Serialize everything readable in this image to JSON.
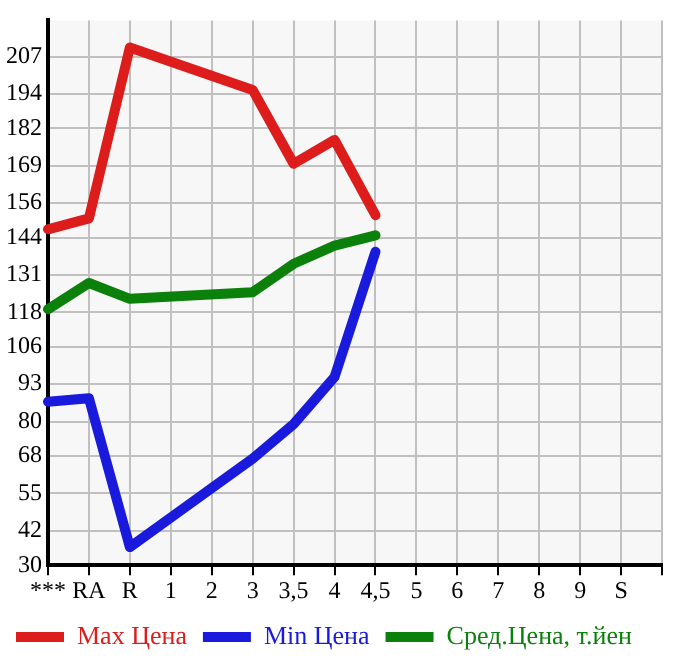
{
  "chart_data": {
    "type": "line",
    "categories": [
      "***",
      "RA",
      "R",
      "1",
      "2",
      "3",
      "3,5",
      "4",
      "4,5",
      "5",
      "6",
      "7",
      "8",
      "9",
      "S",
      null
    ],
    "series": [
      {
        "name": "Max Цена",
        "color": "#dd1c1c",
        "values": [
          146.9,
          150.7,
          210.2,
          null,
          null,
          195.4,
          169.7,
          178,
          151.8,
          null,
          null,
          null,
          null,
          null,
          null,
          null
        ]
      },
      {
        "name": "Min Цена",
        "color": "#1a1adc",
        "values": [
          86.9,
          88.1,
          36.3,
          null,
          null,
          67.1,
          79.1,
          95.5,
          139.1,
          null,
          null,
          null,
          null,
          null,
          null,
          null
        ]
      },
      {
        "name": "Сред.Цена, т.йен",
        "color": "#0b800b",
        "values": [
          119.1,
          128.2,
          122.7,
          null,
          null,
          125,
          134.9,
          141.2,
          144.8,
          null,
          null,
          null,
          null,
          null,
          null,
          null
        ]
      }
    ],
    "ylim": [
      30,
      219.6
    ],
    "yticks": [
      30,
      42,
      55,
      68,
      80,
      93,
      106,
      118,
      131,
      144,
      156,
      169,
      182,
      194,
      207
    ],
    "grid": true,
    "legend": "bottom",
    "marker": "none",
    "line_style": "solid"
  }
}
